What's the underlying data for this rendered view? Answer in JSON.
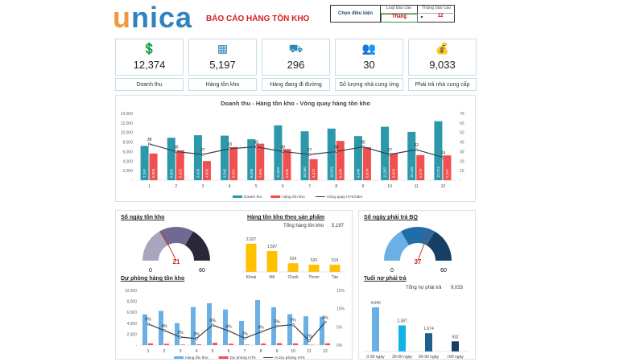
{
  "header": {
    "title": "BÁO CÁO HÀNG TỒN KHO",
    "logo": "unica",
    "filter_label": "Chọn điều kiện",
    "report_type_label": "Loại báo cáo",
    "report_type_value": "Tháng",
    "report_month_label": "Tháng báo cáo",
    "report_month_value": "12"
  },
  "kpis": [
    {
      "icon": "money-hand-icon",
      "value": "12,374",
      "label": "Doanh thu"
    },
    {
      "icon": "boxes-icon",
      "value": "5,197",
      "label": "Hàng tồn kho"
    },
    {
      "icon": "hand-truck-icon",
      "value": "296",
      "label": "Hàng đang đi đường"
    },
    {
      "icon": "suppliers-icon",
      "value": "30",
      "label": "Số lượng nhà cung ứng"
    },
    {
      "icon": "money-bag-icon",
      "value": "9,033",
      "label": "Phải trả nhà cung cấp"
    }
  ],
  "colors": {
    "teal": "#2e98ab",
    "red": "#f0504f",
    "line": "#3a3f4a",
    "light_blue": "#6ab0e4",
    "yellow": "#ffc000"
  },
  "chart_data": [
    {
      "type": "bar",
      "title": "Doanh thu - Hàng tồn kho - Vòng quay hàng tồn kho",
      "categories": [
        "1",
        "2",
        "3",
        "4",
        "5",
        "6",
        "7",
        "8",
        "9",
        "10",
        "11",
        "12"
      ],
      "yticks": [
        "-",
        "2,000",
        "4,000",
        "6,000",
        "8,000",
        "10,000",
        "12,000",
        "14,000"
      ],
      "y2ticks": [
        "-",
        "10",
        "20",
        "30",
        "40",
        "50",
        "60",
        "70"
      ],
      "ylim": [
        0,
        14000
      ],
      "y2lim": [
        0,
        70
      ],
      "series": [
        {
          "name": "Doanh thu",
          "type": "bar",
          "values": [
            7197,
            8895,
            9426,
            9345,
            8588,
            11502,
            10260,
            10829,
            9248,
            11207,
            10136,
            12374
          ],
          "labels": [
            "7,197",
            "8,895",
            "9,426",
            "9,345",
            "8,588",
            "11,502",
            "10,260",
            "10,829",
            "9,248",
            "11,207",
            "10,136",
            "12,374"
          ]
        },
        {
          "name": "Hàng tồn kho",
          "type": "bar",
          "values": [
            5606,
            6262,
            4020,
            6951,
            7655,
            6526,
            4413,
            8240,
            6914,
            5663,
            5270,
            5197
          ],
          "labels": [
            "5,606",
            "6,262",
            "4,020",
            "6,951",
            "7,655",
            "6,526",
            "4,413",
            "8,240",
            "6,914",
            "5,663",
            "5,270",
            "5,197"
          ]
        },
        {
          "name": "Vòng quay HTK/năm",
          "type": "line",
          "axis": "right",
          "values": [
            38,
            30,
            27,
            33,
            35,
            30,
            27,
            30,
            35,
            27,
            32,
            24
          ]
        }
      ],
      "legend": "bottom"
    },
    {
      "type": "gauge",
      "title": "Số ngày tồn kho",
      "value": 21,
      "min": "0",
      "max": "60",
      "value_label": "21"
    },
    {
      "type": "bar",
      "title": "Hàng tồn kho theo sản phẩm",
      "total_label": "Tổng hàng tồn kho",
      "total": "5,197",
      "categories": [
        "Khoai",
        "Mít",
        "Chuối",
        "Thơm",
        "Táo"
      ],
      "values": [
        2027,
        1507,
        624,
        520,
        519
      ],
      "labels": [
        "2,027",
        "1,507",
        "624",
        "520",
        "519"
      ]
    },
    {
      "type": "bar",
      "title": "Dự phòng hàng tồn kho",
      "categories": [
        "1",
        "2",
        "3",
        "4",
        "5",
        "6",
        "7",
        "8",
        "9",
        "10",
        "11",
        "12"
      ],
      "yticks": [
        "-",
        "2,000",
        "4,000",
        "6,000",
        "8,000",
        "10,000"
      ],
      "y2ticks": [
        "0%",
        "5%",
        "10%",
        "15%"
      ],
      "ylim": [
        0,
        10000
      ],
      "y2lim": [
        0,
        15
      ],
      "series": [
        {
          "name": "Hàng tồn kho",
          "type": "bar",
          "values": [
            5606,
            6262,
            4020,
            6951,
            7655,
            6526,
            4413,
            8240,
            6914,
            5663,
            5270,
            5197
          ]
        },
        {
          "name": "Dự phòng HTK",
          "type": "bar",
          "values": [
            320,
            250,
            90,
            130,
            420,
            260,
            90,
            300,
            360,
            320,
            60,
            330
          ]
        },
        {
          "name": "% Dự phòng HTK",
          "type": "line",
          "axis": "right",
          "values": [
            5.8,
            4,
            2.2,
            1.8,
            5.5,
            3.9,
            1.9,
            3.6,
            5.2,
            5.6,
            1.2,
            6.3
          ],
          "labels": [
            "6%",
            "4%",
            "2%",
            "2%",
            "6%",
            "4%",
            "2%",
            "4%",
            "5%",
            "6%",
            "1%",
            "6%"
          ]
        }
      ],
      "legend": "bottom"
    },
    {
      "type": "gauge",
      "title": "Số ngày phải trả BQ",
      "value": 37,
      "min": "0",
      "max": "60",
      "value_label": "37"
    },
    {
      "type": "bar",
      "title": "Tuổi nợ phải trả",
      "total_label": "Tổng nợ phải trả",
      "total": "9,033",
      "categories": [
        "0-30 ngày",
        "30-60 ngày",
        "60-90 ngày",
        ">90 ngày"
      ],
      "values": [
        4040,
        2387,
        1674,
        932
      ],
      "labels": [
        "4,040",
        "2,387",
        "1,674",
        "932"
      ]
    }
  ]
}
